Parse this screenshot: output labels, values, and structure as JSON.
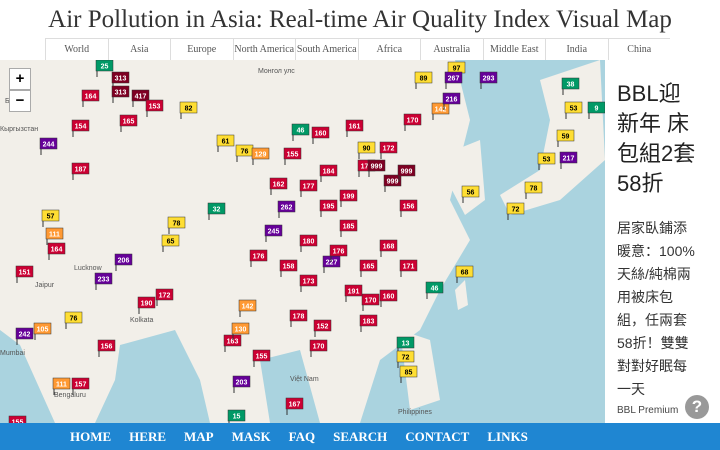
{
  "header": {
    "title": "Air Pollution in Asia: Real-time Air Quality Index Visual Map"
  },
  "nav": {
    "tabs": [
      "World",
      "Asia",
      "Europe",
      "North America",
      "South America",
      "Africa",
      "Australia",
      "Middle East",
      "India",
      "China"
    ]
  },
  "map": {
    "zoom": [
      "+",
      "−"
    ],
    "place_labels": [
      "Бишкек",
      "Кыргызстан",
      "Монгол улс",
      "Jaipur",
      "Lucknow",
      "Kolkata",
      "Mumbai",
      "Bengaluru",
      "Việt Nam",
      "Philippines"
    ],
    "markers": [
      25,
      313,
      164,
      313,
      417,
      153,
      82,
      165,
      154,
      244,
      187,
      61,
      76,
      129,
      155,
      46,
      160,
      161,
      170,
      171,
      999,
      999,
      999,
      172,
      90,
      89,
      97,
      267,
      293,
      142,
      216,
      38,
      53,
      9,
      59,
      217,
      53,
      78,
      72,
      56,
      57,
      78,
      32,
      65,
      111,
      164,
      206,
      151,
      245,
      262,
      227,
      233,
      190,
      172,
      142,
      242,
      105,
      76,
      156,
      111,
      157,
      163,
      130,
      155,
      203,
      167,
      15,
      13,
      72,
      85,
      68,
      46,
      152,
      170,
      155,
      177,
      195,
      185,
      180,
      176,
      165,
      158,
      173,
      191,
      168,
      171,
      184,
      162,
      199,
      178,
      183,
      176,
      160,
      156,
      170
    ]
  },
  "ad": {
    "headline": [
      "BBL迎",
      "新年 床",
      "包組2套",
      "58折"
    ],
    "body": [
      "居家臥鋪添",
      "暖意：100%",
      "天絲/純棉兩",
      "用被床包",
      "組，任兩套",
      "58折！雙雙",
      "對對好眠每",
      "一天"
    ],
    "sponsor": "BBL Premium",
    "help": "?"
  },
  "toolbar": {
    "items": [
      "HOME",
      "HERE",
      "MAP",
      "MASK",
      "FAQ",
      "SEARCH",
      "CONTACT",
      "LINKS"
    ]
  }
}
